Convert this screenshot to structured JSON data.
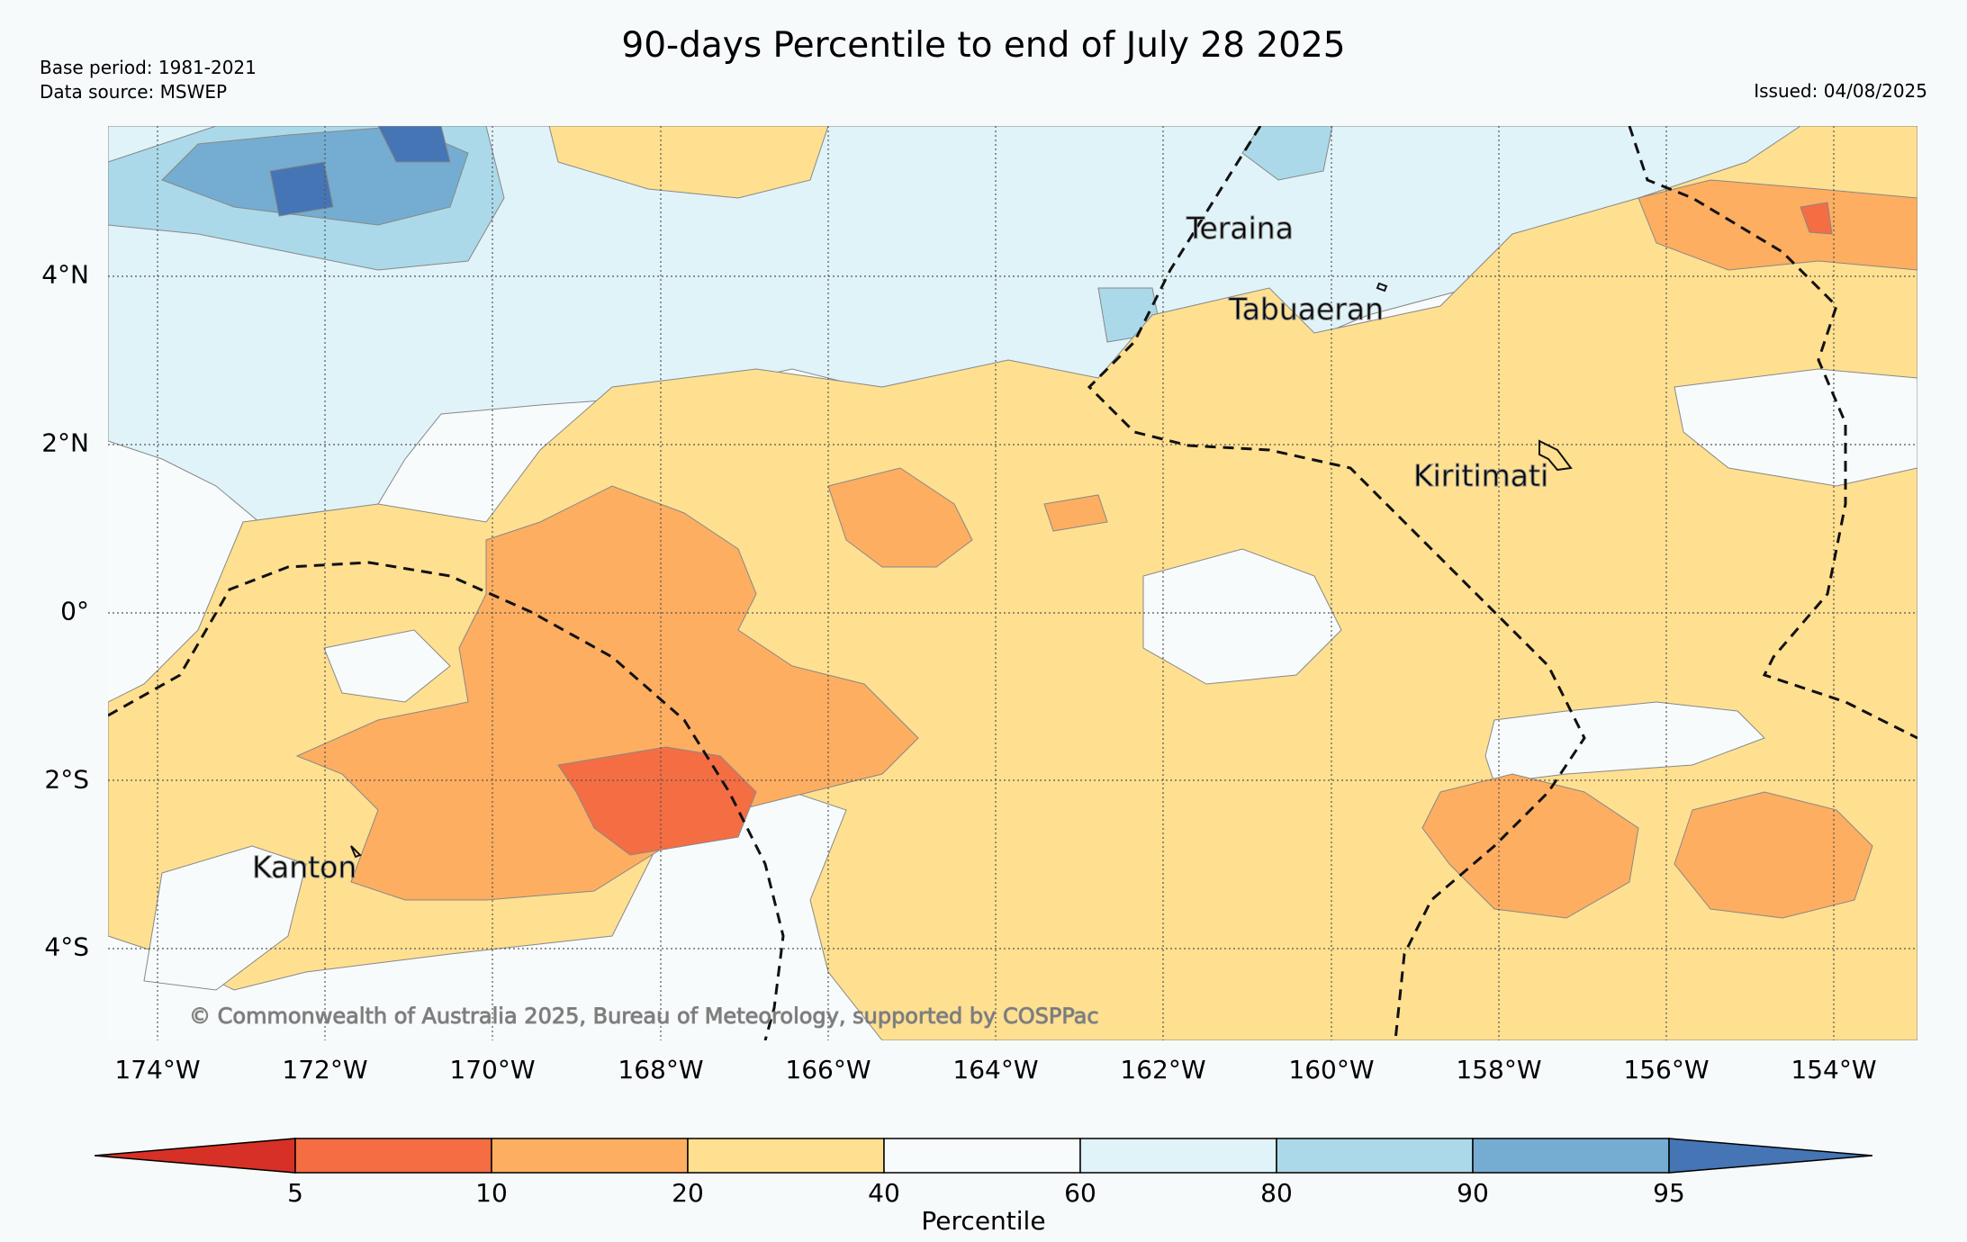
{
  "title": "90-days Percentile to end of July 28 2025",
  "meta": {
    "base_period": "Base period: 1981-2021",
    "data_source": "Data source: MSWEP",
    "issued": "Issued: 04/08/2025"
  },
  "axes": {
    "lat_labels": [
      "4°N",
      "2°N",
      "0°",
      "2°S",
      "4°S"
    ],
    "lon_labels": [
      "174°W",
      "172°W",
      "170°W",
      "168°W",
      "166°W",
      "164°W",
      "162°W",
      "160°W",
      "158°W",
      "156°W",
      "154°W"
    ]
  },
  "places": {
    "teraina": "Teraina",
    "tabuaeran": "Tabuaeran",
    "kiritimati": "Kiritimati",
    "kanton": "Kanton"
  },
  "copyright": "© Commonwealth of Australia 2025, Bureau of Meteorology, supported by COSPPac",
  "colorbar": {
    "title": "Percentile",
    "ticks": [
      "5",
      "10",
      "20",
      "40",
      "60",
      "80",
      "90",
      "95"
    ],
    "colors": {
      "below_5": "#d73027",
      "5_10": "#f46d43",
      "10_20": "#fdae61",
      "20_40": "#fee090",
      "40_60": "#f7fbfc",
      "60_80": "#e0f3f8",
      "80_90": "#abd9e9",
      "90_95": "#74add1",
      "above_95": "#4575b4"
    }
  }
}
